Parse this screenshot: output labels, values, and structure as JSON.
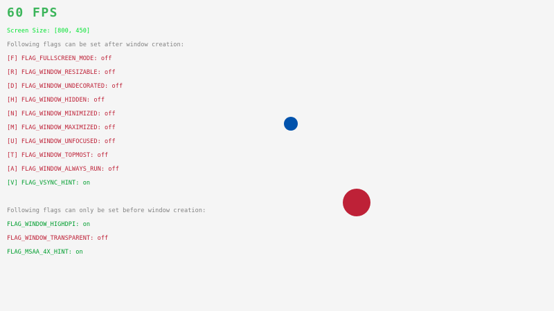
{
  "colors": {
    "background": "#F5F5F5",
    "fps": "#3BB55A",
    "screen_size": "#00E430",
    "info": "#828282",
    "off": "#BE2137",
    "on": "#009E2F",
    "ball_small": "#0052AC",
    "ball_large": "#BE2137"
  },
  "fps": "60 FPS",
  "screen_size": "Screen Size: [800, 450]",
  "after_heading": "Following flags can be set after window creation:",
  "after_flags": [
    {
      "label": "[F] FLAG_FULLSCREEN_MODE: ",
      "state": "off"
    },
    {
      "label": "[R] FLAG_WINDOW_RESIZABLE: ",
      "state": "off"
    },
    {
      "label": "[D] FLAG_WINDOW_UNDECORATED: ",
      "state": "off"
    },
    {
      "label": "[H] FLAG_WINDOW_HIDDEN: ",
      "state": "off"
    },
    {
      "label": "[N] FLAG_WINDOW_MINIMIZED: ",
      "state": "off"
    },
    {
      "label": "[M] FLAG_WINDOW_MAXIMIZED: ",
      "state": "off"
    },
    {
      "label": "[U] FLAG_WINDOW_UNFOCUSED: ",
      "state": "off"
    },
    {
      "label": "[T] FLAG_WINDOW_TOPMOST: ",
      "state": "off"
    },
    {
      "label": "[A] FLAG_WINDOW_ALWAYS_RUN: ",
      "state": "off"
    },
    {
      "label": "[V] FLAG_VSYNC_HINT: ",
      "state": "on"
    }
  ],
  "before_heading": "Following flags can only be set before window creation:",
  "before_flags": [
    {
      "label": "FLAG_WINDOW_HIGHDPI: ",
      "state": "on"
    },
    {
      "label": "FLAG_WINDOW_TRANSPARENT: ",
      "state": "off"
    },
    {
      "label": "FLAG_MSAA_4X_HINT: ",
      "state": "on"
    }
  ]
}
